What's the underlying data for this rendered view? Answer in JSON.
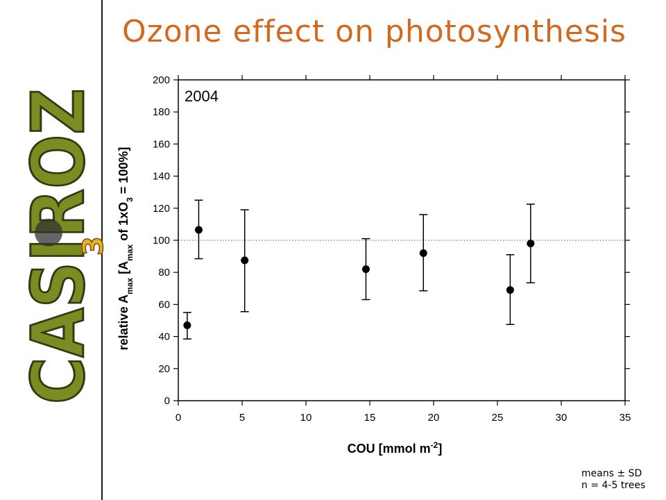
{
  "slide": {
    "title": "Ozone effect on photosynthesis",
    "logo_text": "CASIROZ",
    "logo_subscript": "3",
    "notes": [
      "means ± SD",
      "n = 4-5 trees"
    ],
    "colors": {
      "title": "#d2691e",
      "logo_fill": "#7a8d22",
      "logo_dark": "#2f3a10",
      "logo_mark": "#e6b422"
    }
  },
  "chart_data": {
    "type": "scatter",
    "annotation": "2004",
    "xlabel_main": "COU [mmol m",
    "xlabel_sup": "-2",
    "xlabel_end": "]",
    "ylabel_pre": "relative A",
    "ylabel_sub1": "max",
    "ylabel_mid1": " [A",
    "ylabel_sub2": "max",
    "ylabel_mid2": " of 1xO",
    "ylabel_sub3": "3",
    "ylabel_end": " = 100%]",
    "xlim": [
      0,
      35
    ],
    "ylim": [
      0,
      200
    ],
    "x_ticks": [
      0,
      5,
      10,
      15,
      20,
      25,
      30,
      35
    ],
    "y_ticks": [
      0,
      20,
      40,
      60,
      80,
      100,
      120,
      140,
      160,
      180,
      200
    ],
    "reference_line": 100,
    "grid": false,
    "series": [
      {
        "points": [
          {
            "x": 0.7,
            "y": 47,
            "err_low": 38.5,
            "err_high": 55
          },
          {
            "x": 1.6,
            "y": 106.5,
            "err_low": 88.5,
            "err_high": 125
          },
          {
            "x": 5.2,
            "y": 87.5,
            "err_low": 55.5,
            "err_high": 119
          },
          {
            "x": 14.7,
            "y": 82,
            "err_low": 63,
            "err_high": 101
          },
          {
            "x": 19.2,
            "y": 92,
            "err_low": 68.5,
            "err_high": 116
          },
          {
            "x": 26.0,
            "y": 69,
            "err_low": 47.5,
            "err_high": 91
          },
          {
            "x": 27.6,
            "y": 98,
            "err_low": 73.5,
            "err_high": 122.5
          }
        ]
      }
    ]
  }
}
